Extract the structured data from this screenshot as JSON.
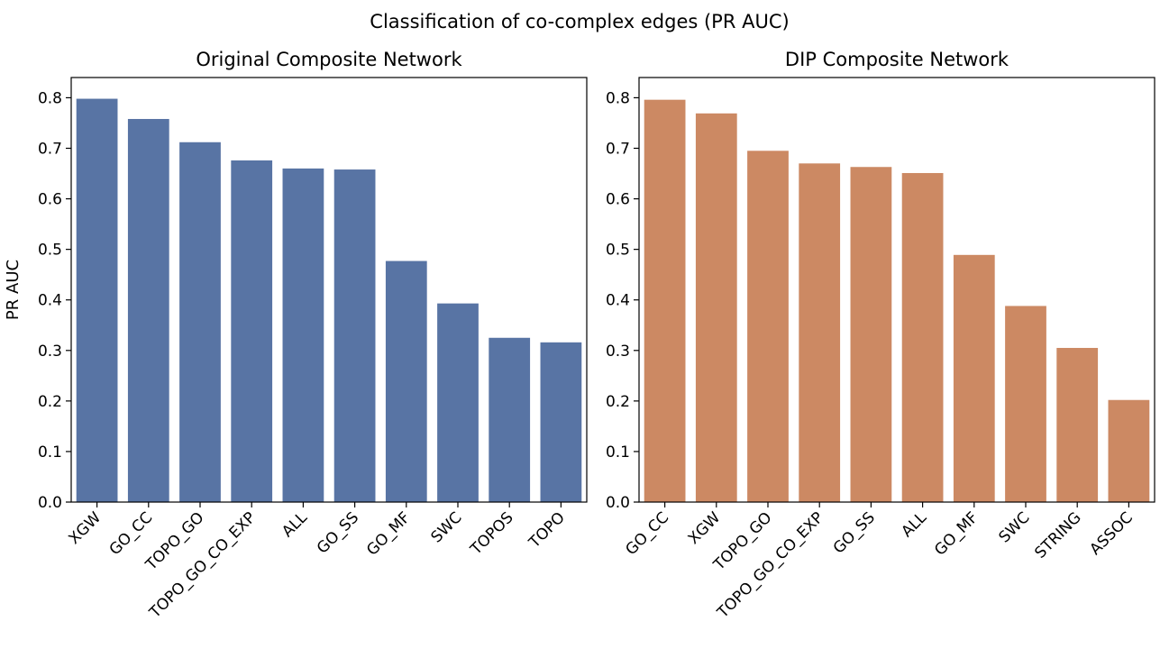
{
  "figure": {
    "title": "Classification of co-complex edges (PR AUC)"
  },
  "chart_data": [
    {
      "type": "bar",
      "title": "Original Composite Network",
      "xlabel": "",
      "ylabel": "PR AUC",
      "ylim": [
        0,
        0.84
      ],
      "yticks": [
        "0.0",
        "0.1",
        "0.2",
        "0.3",
        "0.4",
        "0.5",
        "0.6",
        "0.7",
        "0.8"
      ],
      "grid": false,
      "color": "#5874a4",
      "categories": [
        "XGW",
        "GO_CC",
        "TOPO_GO",
        "TOPO_GO_CO_EXP",
        "ALL",
        "GO_SS",
        "GO_MF",
        "SWC",
        "TOPOS",
        "TOPO"
      ],
      "values": [
        0.798,
        0.758,
        0.712,
        0.676,
        0.66,
        0.658,
        0.477,
        0.393,
        0.325,
        0.316
      ]
    },
    {
      "type": "bar",
      "title": "DIP Composite Network",
      "xlabel": "",
      "ylabel": "",
      "ylim": [
        0,
        0.84
      ],
      "yticks": [
        "0.0",
        "0.1",
        "0.2",
        "0.3",
        "0.4",
        "0.5",
        "0.6",
        "0.7",
        "0.8"
      ],
      "grid": false,
      "color": "#cc8963",
      "categories": [
        "GO_CC",
        "XGW",
        "TOPO_GO",
        "TOPO_GO_CO_EXP",
        "GO_SS",
        "ALL",
        "GO_MF",
        "SWC",
        "STRING",
        "ASSOC"
      ],
      "values": [
        0.796,
        0.769,
        0.695,
        0.67,
        0.663,
        0.651,
        0.489,
        0.388,
        0.305,
        0.202
      ]
    }
  ]
}
